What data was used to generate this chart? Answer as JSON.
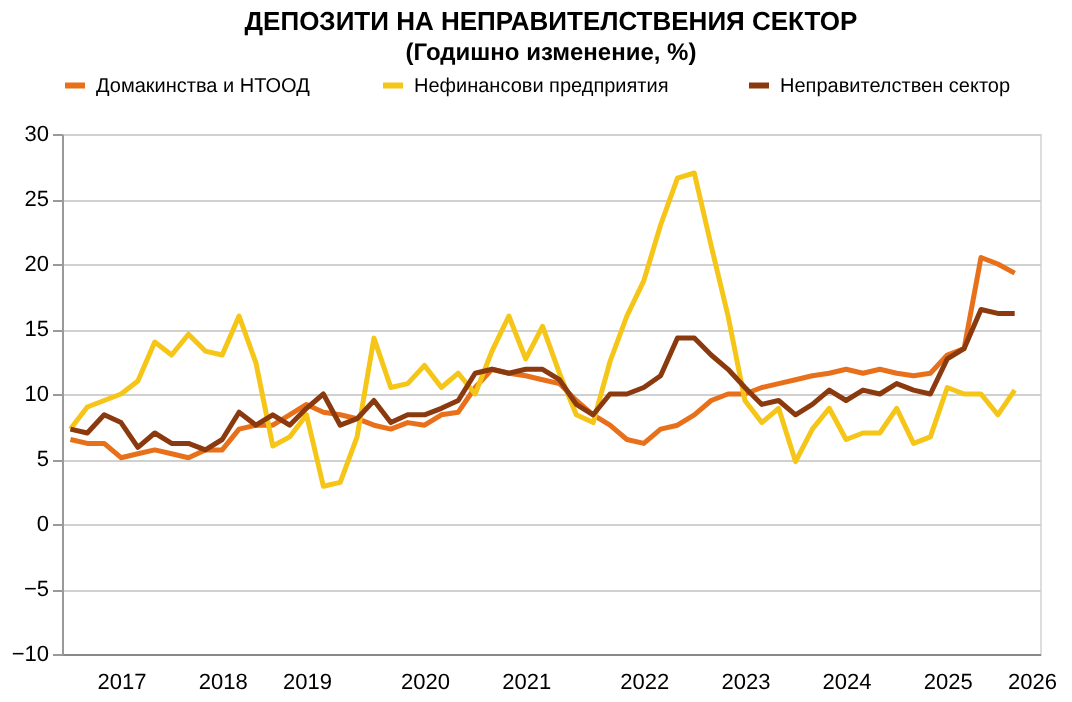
{
  "chart_data": {
    "type": "line",
    "title": "ДЕПОЗИТИ  НА НЕПРАВИТЕЛСТВЕНИЯ  СЕКТОР",
    "subtitle": "(Годишно  изменение, %)",
    "categories": [
      null,
      null,
      null,
      "2017",
      null,
      null,
      null,
      null,
      null,
      "2018",
      null,
      null,
      null,
      null,
      "2019",
      null,
      null,
      null,
      null,
      null,
      null,
      "2020",
      null,
      null,
      null,
      null,
      null,
      "2021",
      null,
      null,
      null,
      null,
      null,
      null,
      "2022",
      null,
      null,
      null,
      null,
      null,
      "2023",
      null,
      null,
      null,
      null,
      null,
      "2024",
      null,
      null,
      null,
      null,
      null,
      "2025",
      null,
      null,
      null,
      null,
      "2026"
    ],
    "series": [
      {
        "name": "Домакинства и НТООД",
        "color": "#e8701a",
        "values": [
          6.5,
          6.2,
          6.2,
          5.1,
          5.4,
          5.7,
          5.4,
          5.1,
          5.7,
          5.7,
          7.3,
          7.6,
          7.6,
          8.4,
          9.2,
          8.6,
          8.4,
          8.1,
          7.6,
          7.3,
          7.8,
          7.6,
          8.4,
          8.6,
          10.5,
          11.9,
          11.6,
          11.4,
          11.1,
          10.8,
          9.5,
          8.4,
          7.6,
          6.5,
          6.2,
          7.3,
          7.6,
          8.4,
          9.5,
          10,
          10,
          10.5,
          10.8,
          11.1,
          11.4,
          11.6,
          11.9,
          11.6,
          11.9,
          11.6,
          11.4,
          11.6,
          13,
          13.5,
          20.5,
          20,
          19.3,
          null
        ]
      },
      {
        "name": "Нефинансови  предприятия",
        "color": "#f5c518",
        "values": [
          7.3,
          9,
          9.5,
          10,
          11,
          14,
          13,
          14.6,
          13.3,
          13,
          16,
          12.4,
          6,
          6.7,
          8.4,
          2.9,
          3.2,
          6.7,
          14.3,
          10.5,
          10.8,
          12.2,
          10.5,
          11.6,
          10,
          13.3,
          16,
          12.7,
          15.2,
          11.6,
          8.4,
          7.8,
          12.5,
          16,
          18.7,
          23,
          26.6,
          27,
          21.4,
          16,
          9.5,
          7.8,
          8.9,
          4.8,
          7.3,
          8.9,
          6.5,
          7,
          7,
          8.9,
          6.2,
          6.7,
          10.5,
          10,
          10,
          8.4,
          10.3,
          null
        ]
      },
      {
        "name": "Неправителствен сектор",
        "color": "#8b3a0f",
        "values": [
          7.3,
          7,
          8.4,
          7.8,
          5.9,
          7,
          6.2,
          6.2,
          5.7,
          6.5,
          8.6,
          7.6,
          8.4,
          7.6,
          8.9,
          10,
          7.6,
          8.1,
          9.5,
          7.8,
          8.4,
          8.4,
          8.9,
          9.5,
          11.6,
          11.9,
          11.6,
          11.9,
          11.9,
          11.1,
          9.2,
          8.4,
          10,
          10,
          10.5,
          11.4,
          14.3,
          14.3,
          13,
          11.9,
          10.5,
          9.2,
          9.5,
          8.4,
          9.2,
          10.3,
          9.5,
          10.3,
          10,
          10.8,
          10.3,
          10,
          12.7,
          13.5,
          16.5,
          16.2,
          16.2,
          null
        ]
      }
    ],
    "ylim": [
      -10,
      30
    ],
    "yticks": [
      -10,
      -5,
      0,
      5,
      10,
      15,
      20,
      25,
      30
    ],
    "grid": "y",
    "legend": "top",
    "line_style": "solid",
    "marker": "none"
  }
}
